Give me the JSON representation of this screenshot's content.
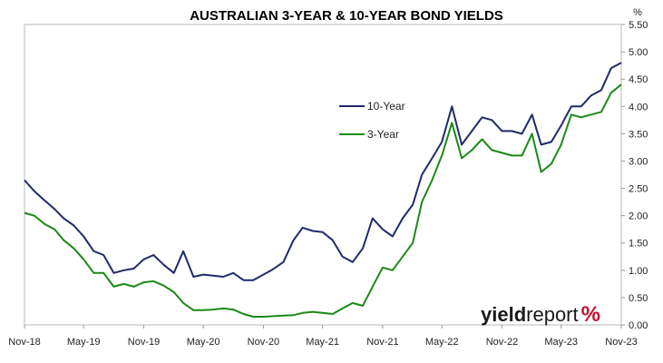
{
  "chart_data": {
    "type": "line",
    "title": "AUSTRALIAN 3-YEAR & 10-YEAR BOND YIELDS",
    "ylabel": "%",
    "ylim": [
      0,
      5.5
    ],
    "yticks": [
      "0.00",
      "0.50",
      "1.00",
      "1.50",
      "2.00",
      "2.50",
      "3.00",
      "3.50",
      "4.00",
      "4.50",
      "5.00",
      "5.50"
    ],
    "x_tick_labels": [
      "Nov-18",
      "May-19",
      "Nov-19",
      "May-20",
      "Nov-20",
      "May-21",
      "Nov-21",
      "May-22",
      "Nov-22",
      "May-23",
      "Nov-23"
    ],
    "legend_position": "center-right",
    "grid": false,
    "series": [
      {
        "name": "10-Year",
        "color": "#1f2a6b",
        "points": [
          [
            "2018-11-01",
            2.65
          ],
          [
            "2018-12-01",
            2.45
          ],
          [
            "2019-01-01",
            2.28
          ],
          [
            "2019-02-01",
            2.12
          ],
          [
            "2019-03-01",
            1.95
          ],
          [
            "2019-04-01",
            1.82
          ],
          [
            "2019-05-01",
            1.62
          ],
          [
            "2019-06-01",
            1.35
          ],
          [
            "2019-07-01",
            1.28
          ],
          [
            "2019-08-01",
            0.95
          ],
          [
            "2019-09-01",
            1.0
          ],
          [
            "2019-10-01",
            1.03
          ],
          [
            "2019-11-01",
            1.2
          ],
          [
            "2019-12-01",
            1.28
          ],
          [
            "2020-01-01",
            1.1
          ],
          [
            "2020-02-01",
            0.95
          ],
          [
            "2020-03-01",
            1.35
          ],
          [
            "2020-04-01",
            0.88
          ],
          [
            "2020-05-01",
            0.92
          ],
          [
            "2020-06-01",
            0.9
          ],
          [
            "2020-07-01",
            0.88
          ],
          [
            "2020-08-01",
            0.95
          ],
          [
            "2020-09-01",
            0.82
          ],
          [
            "2020-10-01",
            0.82
          ],
          [
            "2020-11-01",
            0.92
          ],
          [
            "2020-12-01",
            1.02
          ],
          [
            "2021-01-01",
            1.15
          ],
          [
            "2021-02-01",
            1.55
          ],
          [
            "2021-03-01",
            1.78
          ],
          [
            "2021-04-01",
            1.72
          ],
          [
            "2021-05-01",
            1.7
          ],
          [
            "2021-06-01",
            1.55
          ],
          [
            "2021-07-01",
            1.25
          ],
          [
            "2021-08-01",
            1.15
          ],
          [
            "2021-09-01",
            1.4
          ],
          [
            "2021-10-01",
            1.95
          ],
          [
            "2021-11-01",
            1.75
          ],
          [
            "2021-12-01",
            1.62
          ],
          [
            "2022-01-01",
            1.95
          ],
          [
            "2022-02-01",
            2.2
          ],
          [
            "2022-03-01",
            2.75
          ],
          [
            "2022-04-01",
            3.05
          ],
          [
            "2022-05-01",
            3.35
          ],
          [
            "2022-06-01",
            4.0
          ],
          [
            "2022-07-01",
            3.3
          ],
          [
            "2022-08-01",
            3.55
          ],
          [
            "2022-09-01",
            3.8
          ],
          [
            "2022-10-01",
            3.75
          ],
          [
            "2022-11-01",
            3.55
          ],
          [
            "2022-12-01",
            3.55
          ],
          [
            "2023-01-01",
            3.5
          ],
          [
            "2023-02-01",
            3.85
          ],
          [
            "2023-03-01",
            3.3
          ],
          [
            "2023-04-01",
            3.35
          ],
          [
            "2023-05-01",
            3.65
          ],
          [
            "2023-06-01",
            4.0
          ],
          [
            "2023-07-01",
            4.0
          ],
          [
            "2023-08-01",
            4.2
          ],
          [
            "2023-09-01",
            4.3
          ],
          [
            "2023-10-01",
            4.7
          ],
          [
            "2023-11-01",
            4.8
          ]
        ]
      },
      {
        "name": "3-Year",
        "color": "#1a8a14",
        "points": [
          [
            "2018-11-01",
            2.05
          ],
          [
            "2018-12-01",
            2.0
          ],
          [
            "2019-01-01",
            1.85
          ],
          [
            "2019-02-01",
            1.75
          ],
          [
            "2019-03-01",
            1.55
          ],
          [
            "2019-04-01",
            1.4
          ],
          [
            "2019-05-01",
            1.2
          ],
          [
            "2019-06-01",
            0.95
          ],
          [
            "2019-07-01",
            0.95
          ],
          [
            "2019-08-01",
            0.7
          ],
          [
            "2019-09-01",
            0.75
          ],
          [
            "2019-10-01",
            0.7
          ],
          [
            "2019-11-01",
            0.78
          ],
          [
            "2019-12-01",
            0.8
          ],
          [
            "2020-01-01",
            0.72
          ],
          [
            "2020-02-01",
            0.6
          ],
          [
            "2020-03-01",
            0.4
          ],
          [
            "2020-04-01",
            0.27
          ],
          [
            "2020-05-01",
            0.27
          ],
          [
            "2020-06-01",
            0.28
          ],
          [
            "2020-07-01",
            0.3
          ],
          [
            "2020-08-01",
            0.28
          ],
          [
            "2020-09-01",
            0.2
          ],
          [
            "2020-10-01",
            0.15
          ],
          [
            "2020-11-01",
            0.15
          ],
          [
            "2020-12-01",
            0.16
          ],
          [
            "2021-01-01",
            0.17
          ],
          [
            "2021-02-01",
            0.18
          ],
          [
            "2021-03-01",
            0.22
          ],
          [
            "2021-04-01",
            0.24
          ],
          [
            "2021-05-01",
            0.22
          ],
          [
            "2021-06-01",
            0.2
          ],
          [
            "2021-07-01",
            0.3
          ],
          [
            "2021-08-01",
            0.4
          ],
          [
            "2021-09-01",
            0.35
          ],
          [
            "2021-10-01",
            0.7
          ],
          [
            "2021-11-01",
            1.05
          ],
          [
            "2021-12-01",
            1.0
          ],
          [
            "2022-01-01",
            1.25
          ],
          [
            "2022-02-01",
            1.5
          ],
          [
            "2022-03-01",
            2.25
          ],
          [
            "2022-04-01",
            2.65
          ],
          [
            "2022-05-01",
            3.1
          ],
          [
            "2022-06-01",
            3.7
          ],
          [
            "2022-07-01",
            3.05
          ],
          [
            "2022-08-01",
            3.2
          ],
          [
            "2022-09-01",
            3.4
          ],
          [
            "2022-10-01",
            3.2
          ],
          [
            "2022-11-01",
            3.15
          ],
          [
            "2022-12-01",
            3.1
          ],
          [
            "2023-01-01",
            3.1
          ],
          [
            "2023-02-01",
            3.5
          ],
          [
            "2023-03-01",
            2.8
          ],
          [
            "2023-04-01",
            2.95
          ],
          [
            "2023-05-01",
            3.3
          ],
          [
            "2023-06-01",
            3.85
          ],
          [
            "2023-07-01",
            3.8
          ],
          [
            "2023-08-01",
            3.85
          ],
          [
            "2023-09-01",
            3.9
          ],
          [
            "2023-10-01",
            4.25
          ],
          [
            "2023-11-01",
            4.4
          ]
        ]
      }
    ]
  },
  "logo": {
    "part1": "yield",
    "part2": "report",
    "part3": "%",
    "color": "#c4122f"
  }
}
